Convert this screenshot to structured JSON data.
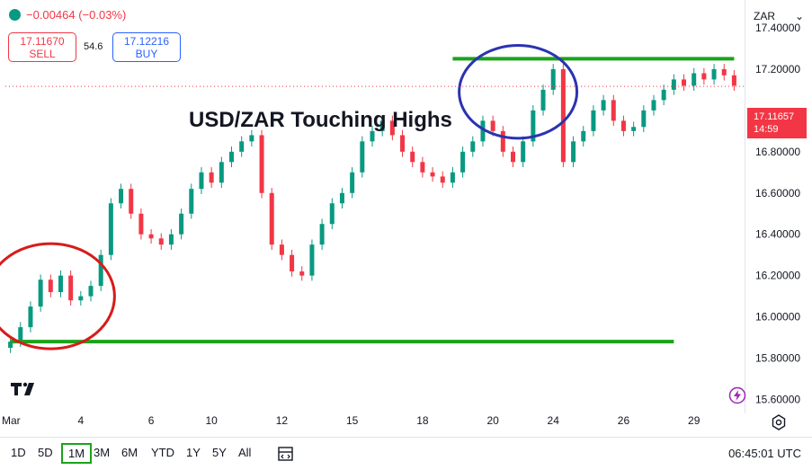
{
  "header": {
    "change_text": "−0.00464 (−0.03%)",
    "sell_price": "17.11670",
    "sell_label": "SELL",
    "buy_price": "17.12216",
    "buy_label": "BUY",
    "spread": "54.6"
  },
  "currency_select": {
    "value": "ZAR"
  },
  "price_tag": {
    "price": "17.11657",
    "countdown": "14:59"
  },
  "bottom_bar": {
    "ranges": [
      "1D",
      "5D",
      "1M",
      "3M",
      "6M",
      "YTD",
      "1Y",
      "5Y",
      "All"
    ],
    "active_range": "1M",
    "time": "06:45:01 UTC"
  },
  "colors": {
    "up": "#089981",
    "down": "#f23645",
    "hline": "#1aa31a",
    "highlight_high": "#2b33b0",
    "highlight_low": "#d81b1b"
  },
  "icons": [
    "tradingview-logo-icon",
    "compare-icon",
    "settings-icon",
    "lightning-icon",
    "chevron-down-icon"
  ],
  "chart_data": {
    "type": "candlestick",
    "title": "USD/ZAR Touching Highs",
    "x_tick_labels": [
      "Mar",
      "4",
      "6",
      "10",
      "12",
      "15",
      "18",
      "20",
      "24",
      "26",
      "29"
    ],
    "y_tick_labels": [
      "17.40000",
      "17.20000",
      "16.80000",
      "16.60000",
      "16.40000",
      "16.20000",
      "16.00000",
      "15.80000",
      "15.60000"
    ],
    "ylim": [
      15.55,
      17.5
    ],
    "last_price": 17.11657,
    "closes": [
      15.88,
      15.95,
      16.05,
      16.18,
      16.12,
      16.2,
      16.08,
      16.1,
      16.15,
      16.3,
      16.55,
      16.62,
      16.5,
      16.4,
      16.38,
      16.35,
      16.4,
      16.5,
      16.62,
      16.7,
      16.65,
      16.75,
      16.8,
      16.85,
      16.88,
      16.6,
      16.35,
      16.3,
      16.22,
      16.2,
      16.35,
      16.45,
      16.55,
      16.6,
      16.7,
      16.85,
      16.9,
      16.95,
      16.88,
      16.8,
      16.75,
      16.7,
      16.68,
      16.65,
      16.7,
      16.8,
      16.85,
      16.95,
      16.9,
      16.8,
      16.75,
      16.85,
      17.0,
      17.1,
      17.2,
      16.75,
      16.85,
      16.9,
      17.0,
      17.05,
      16.95,
      16.9,
      16.92,
      17.0,
      17.05,
      17.1,
      17.15,
      17.12,
      17.18,
      17.15,
      17.2,
      17.17,
      17.12
    ],
    "horizontal_lines": [
      {
        "value": 17.25,
        "from_index": 44,
        "to_index": 72
      },
      {
        "value": 15.88,
        "from_index": 0,
        "to_index": 66
      }
    ],
    "highlight_ellipses": [
      {
        "name": "recent-high",
        "index_from": 45,
        "index_to": 56,
        "value_low": 16.9,
        "value_high": 17.28
      },
      {
        "name": "march-low",
        "index_from": -2,
        "index_to": 10,
        "value_low": 15.88,
        "value_high": 16.32
      }
    ],
    "grid": false
  }
}
